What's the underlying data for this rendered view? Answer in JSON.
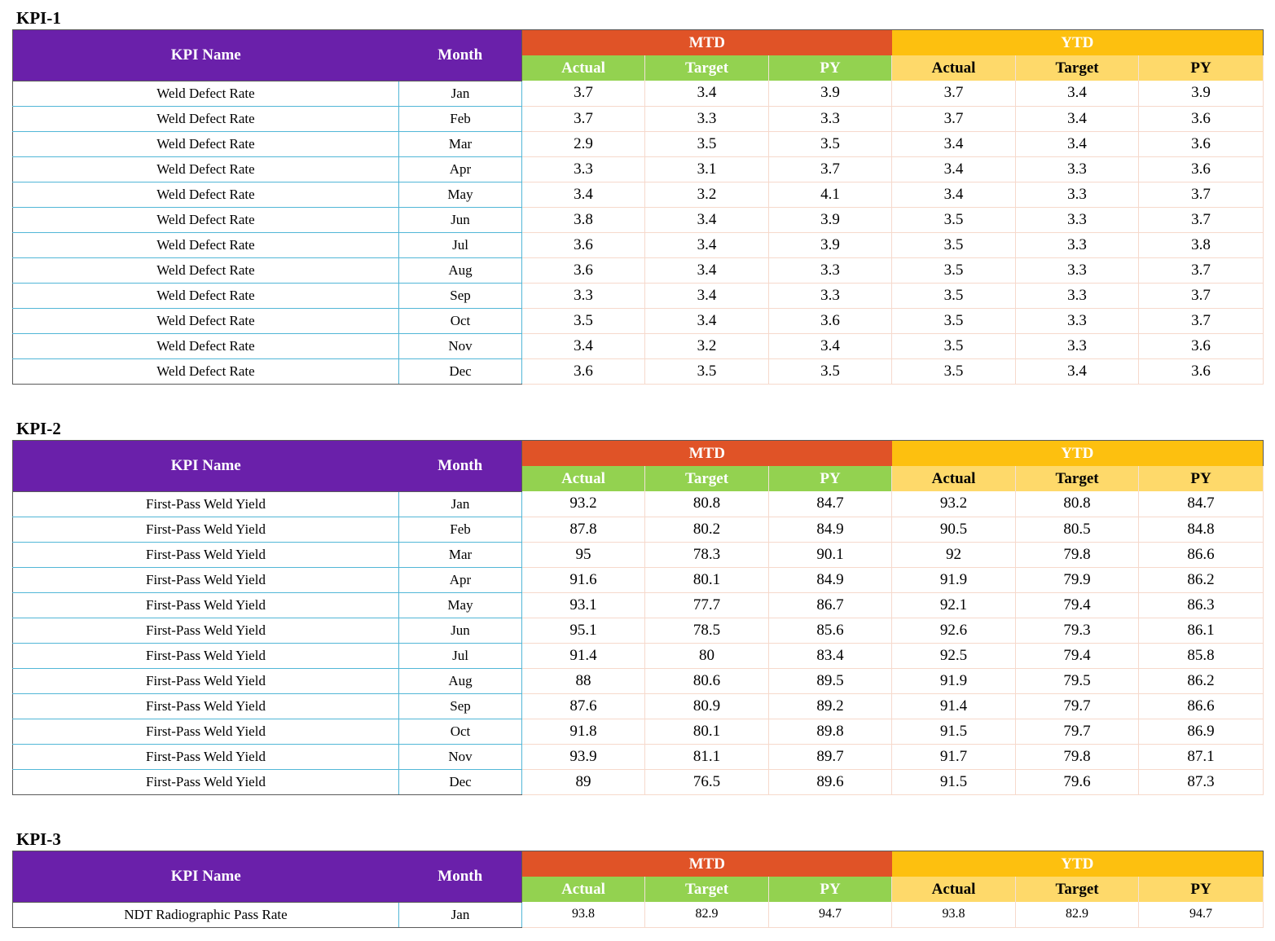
{
  "headers": {
    "kpi_name": "KPI Name",
    "month": "Month",
    "mtd": "MTD",
    "ytd": "YTD",
    "actual": "Actual",
    "target": "Target",
    "py": "PY"
  },
  "colors": {
    "header_purple": "#6a20aa",
    "mtd_orange": "#e05327",
    "ytd_yellow": "#fdc00f",
    "mtd_sub_green": "#93d250",
    "ytd_sub_yellow": "#fed96a",
    "grid_blue": "#52b7d7",
    "grid_peach": "#f6d9cc"
  },
  "kpis": [
    {
      "title": "KPI-1",
      "rows": [
        {
          "name": "Weld Defect Rate",
          "month": "Jan",
          "mtd_actual": "3.7",
          "mtd_target": "3.4",
          "mtd_py": "3.9",
          "ytd_actual": "3.7",
          "ytd_target": "3.4",
          "ytd_py": "3.9"
        },
        {
          "name": "Weld Defect Rate",
          "month": "Feb",
          "mtd_actual": "3.7",
          "mtd_target": "3.3",
          "mtd_py": "3.3",
          "ytd_actual": "3.7",
          "ytd_target": "3.4",
          "ytd_py": "3.6"
        },
        {
          "name": "Weld Defect Rate",
          "month": "Mar",
          "mtd_actual": "2.9",
          "mtd_target": "3.5",
          "mtd_py": "3.5",
          "ytd_actual": "3.4",
          "ytd_target": "3.4",
          "ytd_py": "3.6"
        },
        {
          "name": "Weld Defect Rate",
          "month": "Apr",
          "mtd_actual": "3.3",
          "mtd_target": "3.1",
          "mtd_py": "3.7",
          "ytd_actual": "3.4",
          "ytd_target": "3.3",
          "ytd_py": "3.6"
        },
        {
          "name": "Weld Defect Rate",
          "month": "May",
          "mtd_actual": "3.4",
          "mtd_target": "3.2",
          "mtd_py": "4.1",
          "ytd_actual": "3.4",
          "ytd_target": "3.3",
          "ytd_py": "3.7"
        },
        {
          "name": "Weld Defect Rate",
          "month": "Jun",
          "mtd_actual": "3.8",
          "mtd_target": "3.4",
          "mtd_py": "3.9",
          "ytd_actual": "3.5",
          "ytd_target": "3.3",
          "ytd_py": "3.7"
        },
        {
          "name": "Weld Defect Rate",
          "month": "Jul",
          "mtd_actual": "3.6",
          "mtd_target": "3.4",
          "mtd_py": "3.9",
          "ytd_actual": "3.5",
          "ytd_target": "3.3",
          "ytd_py": "3.8"
        },
        {
          "name": "Weld Defect Rate",
          "month": "Aug",
          "mtd_actual": "3.6",
          "mtd_target": "3.4",
          "mtd_py": "3.3",
          "ytd_actual": "3.5",
          "ytd_target": "3.3",
          "ytd_py": "3.7"
        },
        {
          "name": "Weld Defect Rate",
          "month": "Sep",
          "mtd_actual": "3.3",
          "mtd_target": "3.4",
          "mtd_py": "3.3",
          "ytd_actual": "3.5",
          "ytd_target": "3.3",
          "ytd_py": "3.7"
        },
        {
          "name": "Weld Defect Rate",
          "month": "Oct",
          "mtd_actual": "3.5",
          "mtd_target": "3.4",
          "mtd_py": "3.6",
          "ytd_actual": "3.5",
          "ytd_target": "3.3",
          "ytd_py": "3.7"
        },
        {
          "name": "Weld Defect Rate",
          "month": "Nov",
          "mtd_actual": "3.4",
          "mtd_target": "3.2",
          "mtd_py": "3.4",
          "ytd_actual": "3.5",
          "ytd_target": "3.3",
          "ytd_py": "3.6"
        },
        {
          "name": "Weld Defect Rate",
          "month": "Dec",
          "mtd_actual": "3.6",
          "mtd_target": "3.5",
          "mtd_py": "3.5",
          "ytd_actual": "3.5",
          "ytd_target": "3.4",
          "ytd_py": "3.6"
        }
      ]
    },
    {
      "title": "KPI-2",
      "rows": [
        {
          "name": "First-Pass Weld Yield",
          "month": "Jan",
          "mtd_actual": "93.2",
          "mtd_target": "80.8",
          "mtd_py": "84.7",
          "ytd_actual": "93.2",
          "ytd_target": "80.8",
          "ytd_py": "84.7"
        },
        {
          "name": "First-Pass Weld Yield",
          "month": "Feb",
          "mtd_actual": "87.8",
          "mtd_target": "80.2",
          "mtd_py": "84.9",
          "ytd_actual": "90.5",
          "ytd_target": "80.5",
          "ytd_py": "84.8"
        },
        {
          "name": "First-Pass Weld Yield",
          "month": "Mar",
          "mtd_actual": "95",
          "mtd_target": "78.3",
          "mtd_py": "90.1",
          "ytd_actual": "92",
          "ytd_target": "79.8",
          "ytd_py": "86.6"
        },
        {
          "name": "First-Pass Weld Yield",
          "month": "Apr",
          "mtd_actual": "91.6",
          "mtd_target": "80.1",
          "mtd_py": "84.9",
          "ytd_actual": "91.9",
          "ytd_target": "79.9",
          "ytd_py": "86.2"
        },
        {
          "name": "First-Pass Weld Yield",
          "month": "May",
          "mtd_actual": "93.1",
          "mtd_target": "77.7",
          "mtd_py": "86.7",
          "ytd_actual": "92.1",
          "ytd_target": "79.4",
          "ytd_py": "86.3"
        },
        {
          "name": "First-Pass Weld Yield",
          "month": "Jun",
          "mtd_actual": "95.1",
          "mtd_target": "78.5",
          "mtd_py": "85.6",
          "ytd_actual": "92.6",
          "ytd_target": "79.3",
          "ytd_py": "86.1"
        },
        {
          "name": "First-Pass Weld Yield",
          "month": "Jul",
          "mtd_actual": "91.4",
          "mtd_target": "80",
          "mtd_py": "83.4",
          "ytd_actual": "92.5",
          "ytd_target": "79.4",
          "ytd_py": "85.8"
        },
        {
          "name": "First-Pass Weld Yield",
          "month": "Aug",
          "mtd_actual": "88",
          "mtd_target": "80.6",
          "mtd_py": "89.5",
          "ytd_actual": "91.9",
          "ytd_target": "79.5",
          "ytd_py": "86.2"
        },
        {
          "name": "First-Pass Weld Yield",
          "month": "Sep",
          "mtd_actual": "87.6",
          "mtd_target": "80.9",
          "mtd_py": "89.2",
          "ytd_actual": "91.4",
          "ytd_target": "79.7",
          "ytd_py": "86.6"
        },
        {
          "name": "First-Pass Weld Yield",
          "month": "Oct",
          "mtd_actual": "91.8",
          "mtd_target": "80.1",
          "mtd_py": "89.8",
          "ytd_actual": "91.5",
          "ytd_target": "79.7",
          "ytd_py": "86.9"
        },
        {
          "name": "First-Pass Weld Yield",
          "month": "Nov",
          "mtd_actual": "93.9",
          "mtd_target": "81.1",
          "mtd_py": "89.7",
          "ytd_actual": "91.7",
          "ytd_target": "79.8",
          "ytd_py": "87.1"
        },
        {
          "name": "First-Pass Weld Yield",
          "month": "Dec",
          "mtd_actual": "89",
          "mtd_target": "76.5",
          "mtd_py": "89.6",
          "ytd_actual": "91.5",
          "ytd_target": "79.6",
          "ytd_py": "87.3"
        }
      ]
    },
    {
      "title": "KPI-3",
      "rows": [
        {
          "name": "NDT Radiographic Pass Rate",
          "month": "Jan",
          "mtd_actual": "93.8",
          "mtd_target": "82.9",
          "mtd_py": "94.7",
          "ytd_actual": "93.8",
          "ytd_target": "82.9",
          "ytd_py": "94.7"
        }
      ]
    }
  ]
}
